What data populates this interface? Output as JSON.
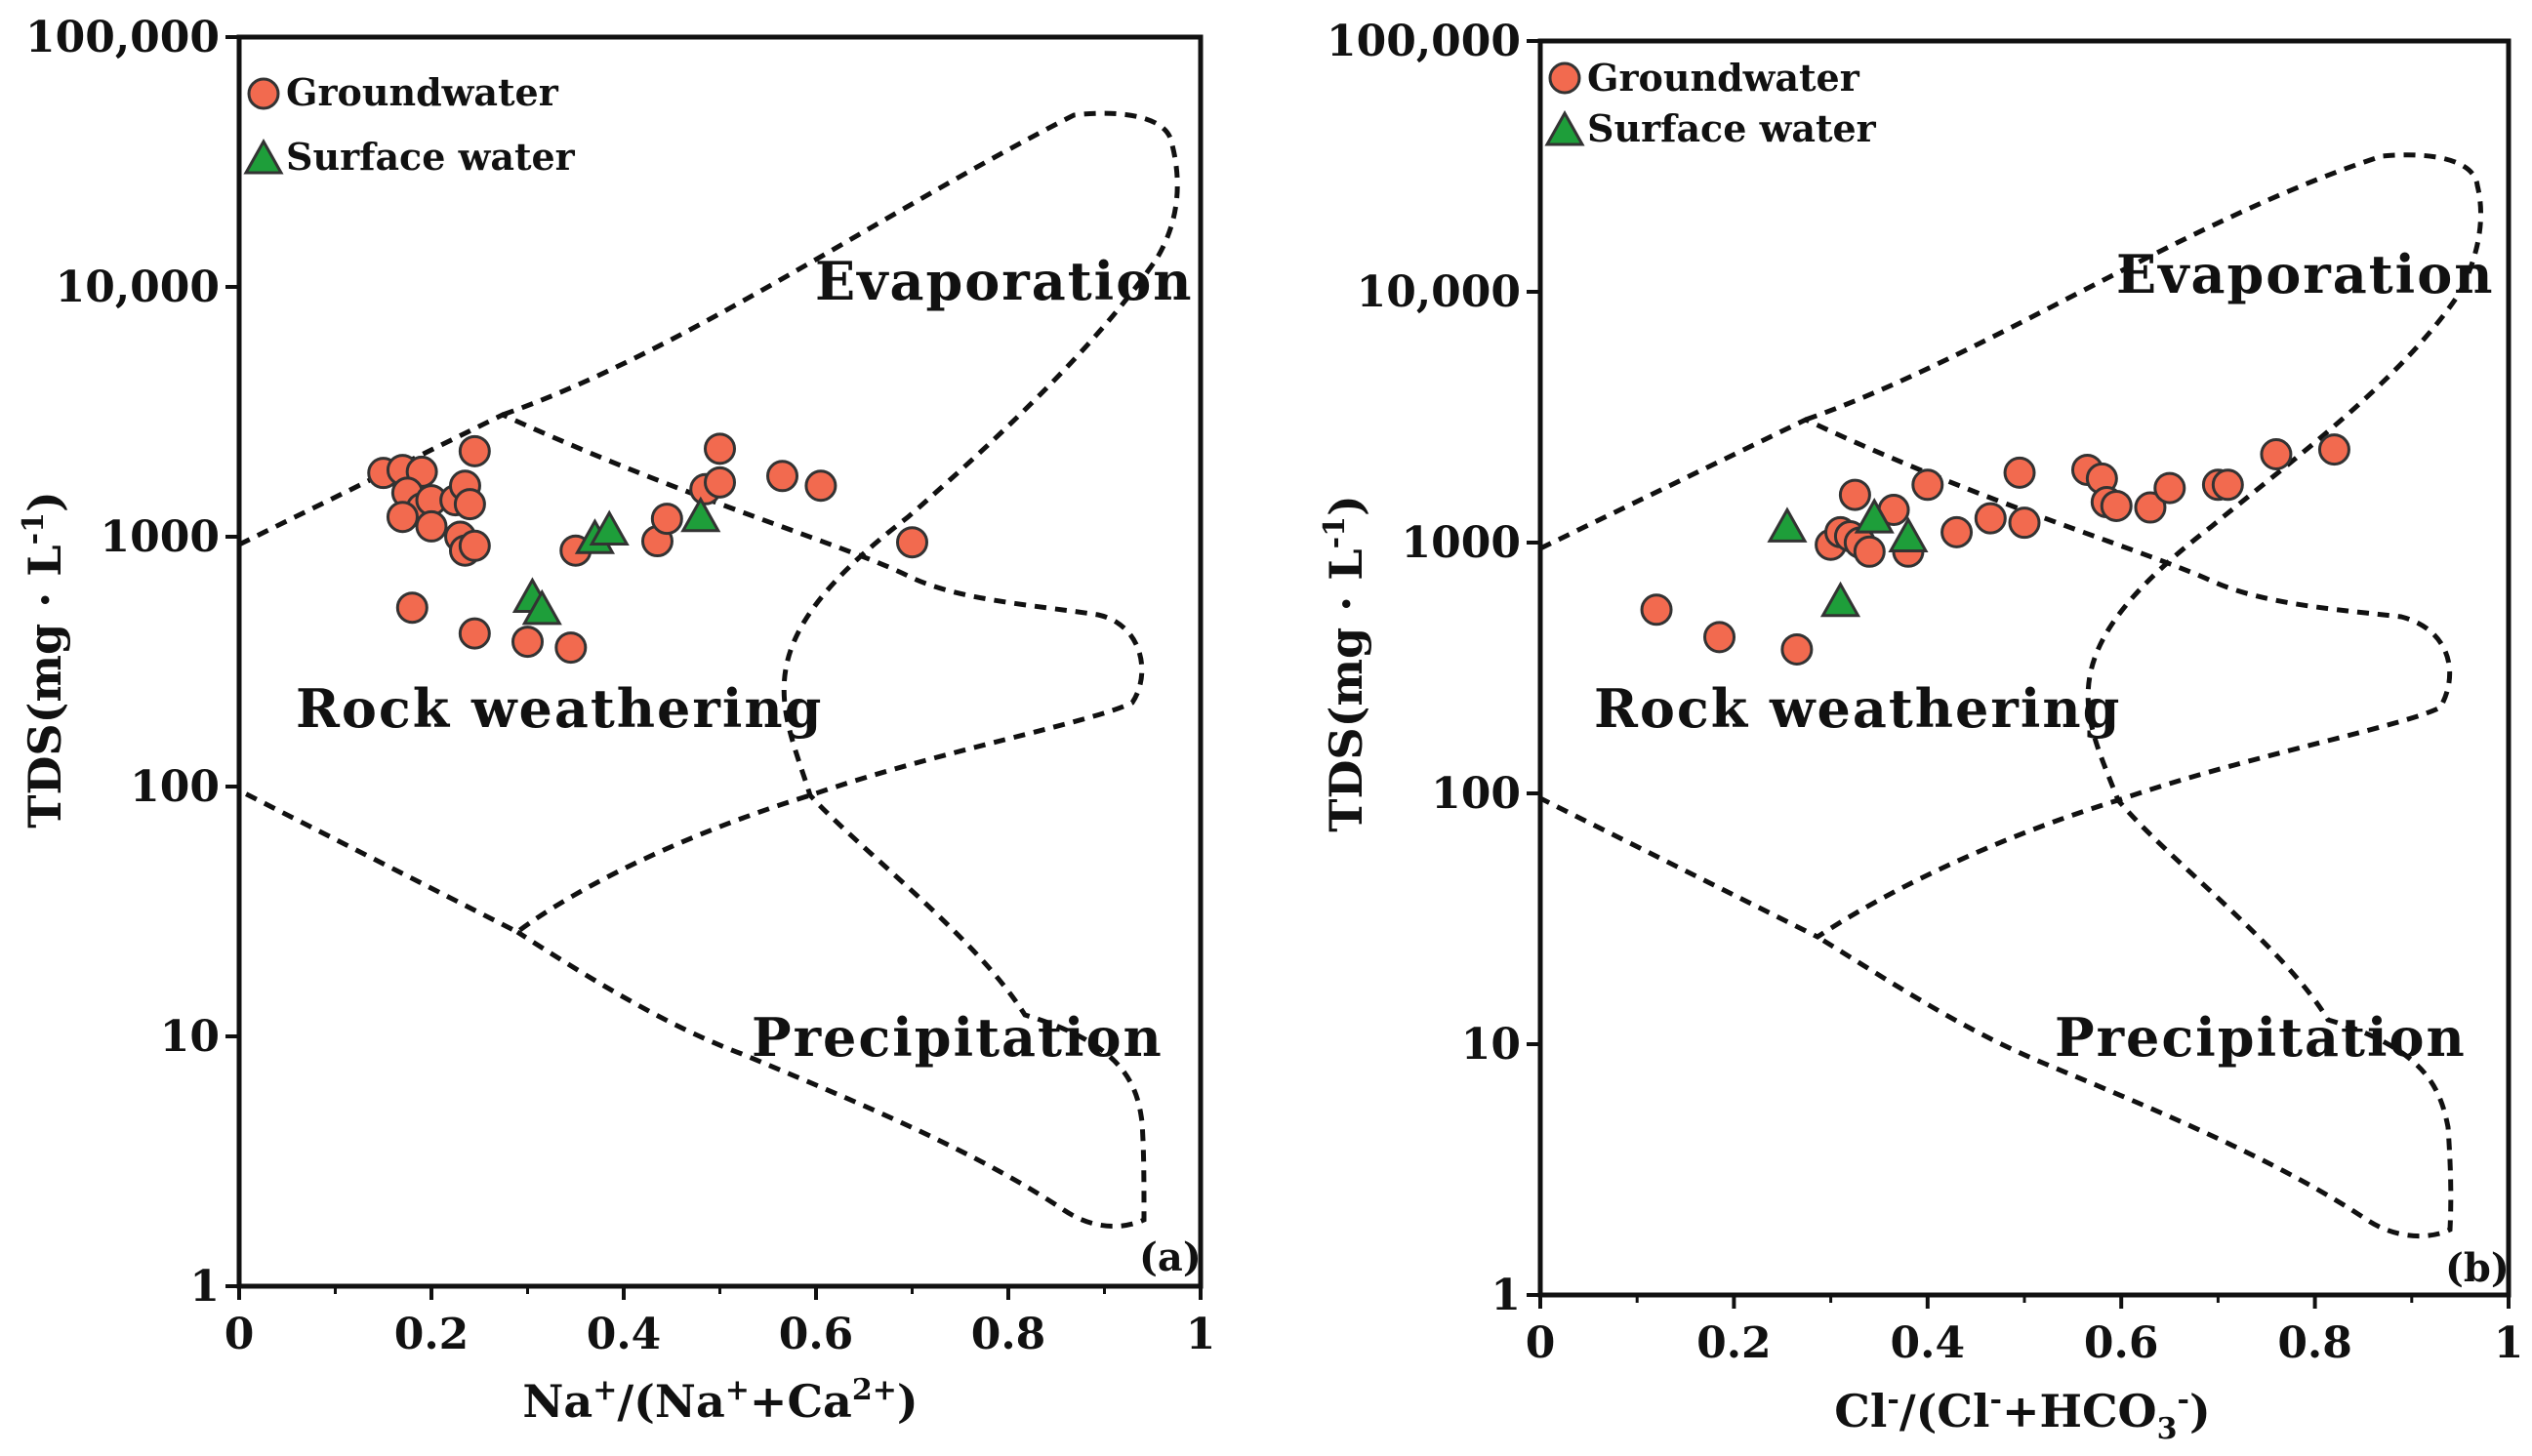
{
  "chart_data": [
    {
      "type": "scatter",
      "panel_tag": "(a)",
      "xlabel": "Na⁺/(Na⁺+Ca²⁺)",
      "ylabel": "TDS(mg · L⁻¹)",
      "xlim": [
        0,
        1
      ],
      "ylim": [
        1,
        100000
      ],
      "yscale": "log",
      "x_ticks": [
        "0",
        "0.2",
        "0.4",
        "0.6",
        "0.8",
        "1"
      ],
      "y_ticks": [
        "1",
        "10",
        "100",
        "1000",
        "10,000",
        "100,000"
      ],
      "legend": [
        "Groundwater",
        "Surface water"
      ],
      "legend_position": "top-left",
      "regions": [
        "Evaporation",
        "Rock weathering",
        "Precipitation"
      ],
      "series": [
        {
          "name": "Groundwater",
          "marker": "circle",
          "color": "#F26A4F",
          "points": [
            [
              0.15,
              1800
            ],
            [
              0.17,
              1850
            ],
            [
              0.19,
              1820
            ],
            [
              0.245,
              2200
            ],
            [
              0.175,
              1500
            ],
            [
              0.19,
              1300
            ],
            [
              0.2,
              1400
            ],
            [
              0.225,
              1400
            ],
            [
              0.235,
              1600
            ],
            [
              0.24,
              1350
            ],
            [
              0.17,
              1200
            ],
            [
              0.2,
              1100
            ],
            [
              0.23,
              1000
            ],
            [
              0.235,
              880
            ],
            [
              0.245,
              920
            ],
            [
              0.18,
              520
            ],
            [
              0.245,
              410
            ],
            [
              0.3,
              380
            ],
            [
              0.345,
              360
            ],
            [
              0.35,
              880
            ],
            [
              0.435,
              960
            ],
            [
              0.445,
              1180
            ],
            [
              0.485,
              1550
            ],
            [
              0.5,
              1650
            ],
            [
              0.5,
              2250
            ],
            [
              0.565,
              1750
            ],
            [
              0.605,
              1600
            ],
            [
              0.7,
              950
            ]
          ]
        },
        {
          "name": "Surface water",
          "marker": "triangle",
          "color": "#1E9E3A",
          "points": [
            [
              0.305,
              570
            ],
            [
              0.315,
              510
            ],
            [
              0.37,
              980
            ],
            [
              0.385,
              1060
            ],
            [
              0.48,
              1200
            ]
          ]
        }
      ]
    },
    {
      "type": "scatter",
      "panel_tag": "(b)",
      "xlabel": "Cl⁻/(Cl⁻+HCO₃⁻)",
      "ylabel": "TDS(mg · L⁻¹)",
      "xlim": [
        0,
        1
      ],
      "ylim": [
        1,
        100000
      ],
      "yscale": "log",
      "x_ticks": [
        "0",
        "0.2",
        "0.4",
        "0.6",
        "0.8",
        "1"
      ],
      "y_ticks": [
        "1",
        "10",
        "100",
        "1000",
        "10,000",
        "100,000"
      ],
      "legend": [
        "Groundwater",
        "Surface water"
      ],
      "legend_position": "top-left",
      "regions": [
        "Evaporation",
        "Rock weathering",
        "Precipitation"
      ],
      "series": [
        {
          "name": "Groundwater",
          "marker": "circle",
          "color": "#F26A4F",
          "points": [
            [
              0.12,
              540
            ],
            [
              0.185,
              420
            ],
            [
              0.265,
              375
            ],
            [
              0.3,
              980
            ],
            [
              0.31,
              1100
            ],
            [
              0.32,
              1060
            ],
            [
              0.33,
              1000
            ],
            [
              0.325,
              1550
            ],
            [
              0.34,
              920
            ],
            [
              0.365,
              1350
            ],
            [
              0.38,
              920
            ],
            [
              0.4,
              1700
            ],
            [
              0.43,
              1100
            ],
            [
              0.465,
              1250
            ],
            [
              0.495,
              1900
            ],
            [
              0.5,
              1200
            ],
            [
              0.565,
              1950
            ],
            [
              0.58,
              1800
            ],
            [
              0.585,
              1450
            ],
            [
              0.595,
              1400
            ],
            [
              0.63,
              1380
            ],
            [
              0.65,
              1650
            ],
            [
              0.7,
              1700
            ],
            [
              0.71,
              1700
            ],
            [
              0.76,
              2250
            ],
            [
              0.82,
              2350
            ]
          ]
        },
        {
          "name": "Surface water",
          "marker": "triangle",
          "color": "#1E9E3A",
          "points": [
            [
              0.255,
              1150
            ],
            [
              0.31,
              580
            ],
            [
              0.345,
              1250
            ],
            [
              0.38,
              1050
            ]
          ]
        }
      ]
    }
  ]
}
